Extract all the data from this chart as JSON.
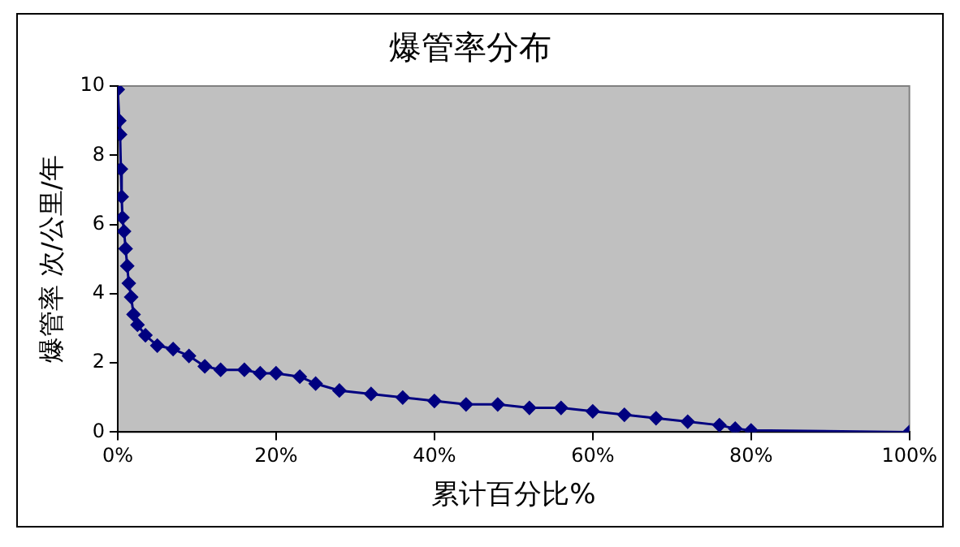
{
  "chart_data": {
    "type": "line",
    "title": "爆管率分布",
    "xlabel": "累计百分比%",
    "ylabel": "爆管率 次/公里/年",
    "x": [
      0,
      0.2,
      0.3,
      0.4,
      0.5,
      0.6,
      0.8,
      1,
      1.2,
      1.4,
      1.7,
      2,
      2.5,
      3.5,
      5,
      7,
      9,
      11,
      13,
      16,
      18,
      20,
      23,
      25,
      28,
      32,
      36,
      40,
      44,
      48,
      52,
      56,
      60,
      64,
      68,
      72,
      76,
      78,
      80,
      100
    ],
    "series": [
      {
        "color": "#000080",
        "values": [
          9.9,
          9,
          8.6,
          7.6,
          6.8,
          6.2,
          5.8,
          5.3,
          4.8,
          4.3,
          3.9,
          3.4,
          3.1,
          2.8,
          2.5,
          2.4,
          2.2,
          1.9,
          1.8,
          1.8,
          1.7,
          1.7,
          1.6,
          1.4,
          1.2,
          1.1,
          1.0,
          0.9,
          0.8,
          0.8,
          0.7,
          0.7,
          0.6,
          0.5,
          0.4,
          0.3,
          0.2,
          0.1,
          0.05,
          0
        ]
      }
    ],
    "xlim": [
      0,
      100
    ],
    "xticks": [
      {
        "value": 0,
        "label": "0%"
      },
      {
        "value": 20,
        "label": "20%"
      },
      {
        "value": 40,
        "label": "40%"
      },
      {
        "value": 60,
        "label": "60%"
      },
      {
        "value": 80,
        "label": "80%"
      },
      {
        "value": 100,
        "label": "100%"
      }
    ],
    "ylim": [
      0,
      10
    ],
    "yticks": [
      0,
      2,
      4,
      6,
      8,
      10
    ],
    "grid": false,
    "legend": false,
    "marker": "diamond",
    "line_style": "solid"
  }
}
